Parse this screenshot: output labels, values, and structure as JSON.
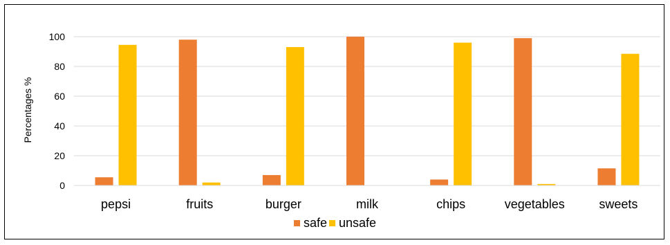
{
  "chart_data": {
    "type": "bar",
    "categories": [
      "pepsi",
      "fruits",
      "burger",
      "milk",
      "chips",
      "vegetables",
      "sweets"
    ],
    "series": [
      {
        "name": "safe",
        "values": [
          5.5,
          98,
          7,
          100,
          4,
          99,
          11.5
        ]
      },
      {
        "name": "unsafe",
        "values": [
          94.5,
          2,
          93,
          0,
          96,
          1,
          88.5
        ]
      }
    ],
    "ylabel": "Percentages %",
    "ylim": [
      0,
      100
    ],
    "yticks": [
      0,
      20,
      40,
      60,
      80,
      100
    ],
    "grid": true,
    "legend_position": "bottom",
    "colors": {
      "safe": "#ED7D31",
      "unsafe": "#FFC000",
      "grid": "#D9D9D9",
      "axis": "#000000"
    }
  }
}
